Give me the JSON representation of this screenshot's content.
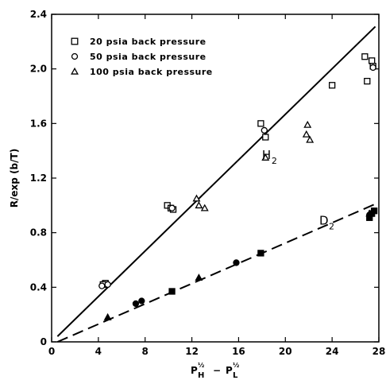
{
  "chart_data": {
    "type": "scatter",
    "xlabel": "P_H^½ − P_L^½",
    "ylabel": "R/exp (b/T)",
    "xlim": [
      0,
      28
    ],
    "ylim": [
      0,
      2.4
    ],
    "x_ticks": [
      "0",
      "4",
      "8",
      "12",
      "16",
      "20",
      "24",
      "28"
    ],
    "y_ticks": [
      "0",
      "0.4",
      "0.8",
      "1.2",
      "1.6",
      "2.0",
      "2.4"
    ],
    "grid": false,
    "legend_position": "top-left",
    "legend": [
      {
        "marker": "square",
        "label": "20 psia back pressure"
      },
      {
        "marker": "circle",
        "label": "50 psia back pressure"
      },
      {
        "marker": "triangle",
        "label": "100 psia back pressure"
      }
    ],
    "lines": [
      {
        "name": "H",
        "subscript": "2",
        "style": "solid",
        "x": [
          0.5,
          27.7
        ],
        "y": [
          0.04,
          2.31
        ],
        "label_at": [
          18.0,
          1.34
        ]
      },
      {
        "name": "D",
        "subscript": "2",
        "style": "dashed",
        "x": [
          0.5,
          27.7
        ],
        "y": [
          0.0,
          1.01
        ],
        "label_at": [
          22.9,
          0.86
        ]
      }
    ],
    "series": [
      {
        "name": "H2 - 20 psia back pressure",
        "marker": "square",
        "filled": false,
        "points": [
          [
            4.6,
            0.43
          ],
          [
            4.4,
            0.42
          ],
          [
            9.9,
            1.0
          ],
          [
            10.2,
            0.98
          ],
          [
            10.4,
            0.97
          ],
          [
            17.9,
            1.6
          ],
          [
            18.3,
            1.5
          ],
          [
            24.0,
            1.88
          ],
          [
            26.8,
            2.09
          ],
          [
            27.0,
            1.91
          ],
          [
            27.4,
            2.06
          ],
          [
            27.5,
            2.02
          ]
        ]
      },
      {
        "name": "H2 - 50 psia back pressure",
        "marker": "circle",
        "filled": false,
        "points": [
          [
            4.3,
            0.41
          ],
          [
            4.8,
            0.42
          ],
          [
            10.3,
            0.98
          ],
          [
            18.2,
            1.55
          ],
          [
            27.5,
            2.01
          ]
        ]
      },
      {
        "name": "H2 - 100 psia back pressure",
        "marker": "triangle",
        "filled": false,
        "points": [
          [
            12.4,
            1.05
          ],
          [
            12.6,
            1.0
          ],
          [
            13.1,
            0.98
          ],
          [
            18.3,
            1.35
          ],
          [
            21.8,
            1.52
          ],
          [
            21.9,
            1.59
          ],
          [
            22.1,
            1.48
          ]
        ]
      },
      {
        "name": "D2 - 20 psia back pressure",
        "marker": "square",
        "filled": true,
        "points": [
          [
            10.3,
            0.37
          ],
          [
            17.9,
            0.65
          ],
          [
            27.2,
            0.91
          ],
          [
            27.4,
            0.94
          ],
          [
            27.6,
            0.96
          ]
        ]
      },
      {
        "name": "D2 - 50 psia back pressure",
        "marker": "circle",
        "filled": true,
        "points": [
          [
            7.2,
            0.28
          ],
          [
            7.7,
            0.3
          ],
          [
            15.8,
            0.58
          ],
          [
            27.2,
            0.93
          ]
        ]
      },
      {
        "name": "D2 - 100 psia back pressure",
        "marker": "triangle",
        "filled": true,
        "points": [
          [
            4.8,
            0.18
          ],
          [
            12.6,
            0.47
          ],
          [
            27.2,
            0.94
          ]
        ]
      }
    ]
  }
}
